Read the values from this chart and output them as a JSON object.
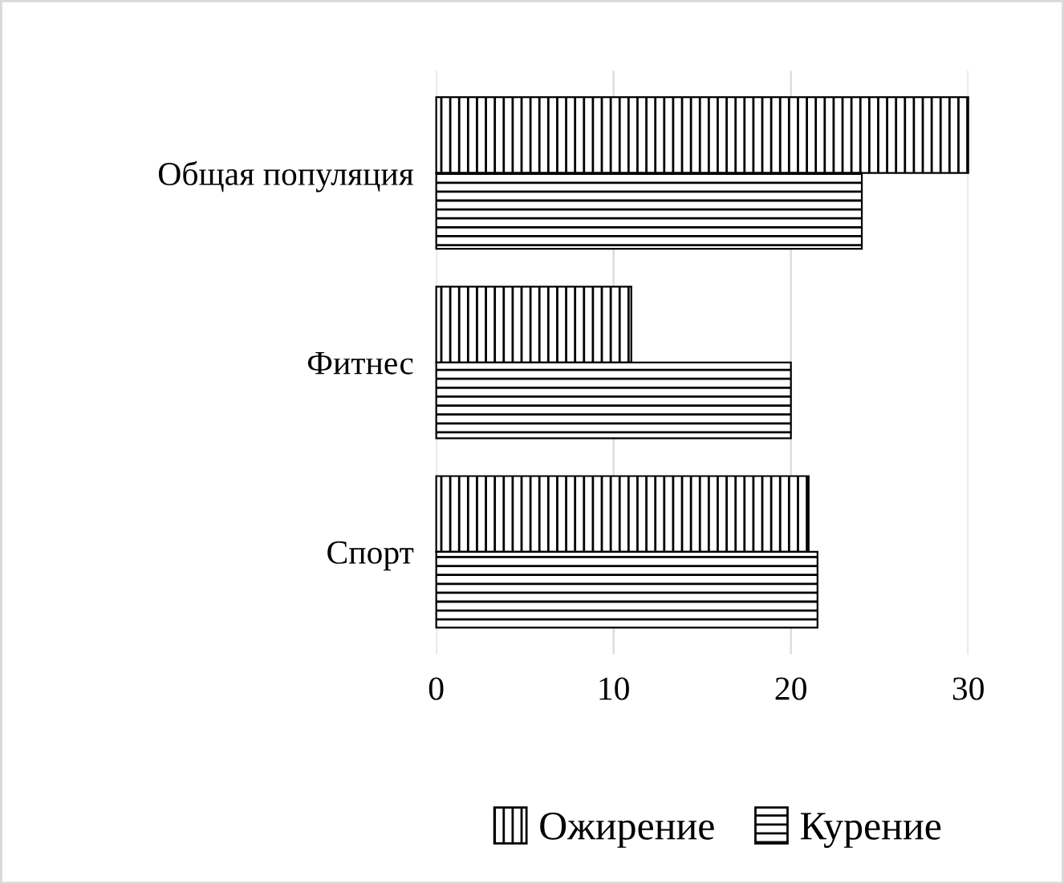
{
  "chart_data": {
    "type": "bar",
    "orientation": "horizontal",
    "categories": [
      "Общая популяция",
      "Фитнес",
      "Спорт"
    ],
    "series": [
      {
        "name": "Ожирение",
        "color": "#000000",
        "values": [
          30,
          11,
          21
        ]
      },
      {
        "name": "Курение",
        "color": "#000000",
        "values": [
          24,
          20,
          21.5
        ]
      }
    ],
    "xlim": [
      0,
      30
    ],
    "xticks": [
      0,
      10,
      20,
      30
    ],
    "grid": "x",
    "legend": "bottom"
  }
}
